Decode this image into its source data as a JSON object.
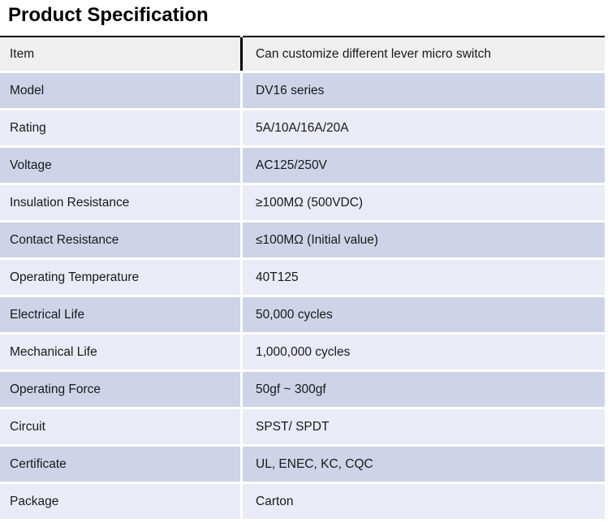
{
  "page": {
    "title": "Product Specification"
  },
  "colors": {
    "row_header_bg": "#efefef",
    "row_dark_bg": "#ced3e8",
    "row_light_bg": "#e9ebf6",
    "border": "#000000"
  },
  "table": {
    "rows": [
      {
        "label": "Item",
        "value": "Can customize different lever micro switch"
      },
      {
        "label": "Model",
        "value": "DV16 series"
      },
      {
        "label": "Rating",
        "value": "5A/10A/16A/20A"
      },
      {
        "label": "Voltage",
        "value": "AC125/250V"
      },
      {
        "label": "Insulation Resistance",
        "value": "≥100MΩ (500VDC)"
      },
      {
        "label": "Contact Resistance",
        "value": "≤100MΩ (Initial value)"
      },
      {
        "label": "Operating Temperature",
        "value": "40T125"
      },
      {
        "label": "Electrical Life",
        "value": "50,000 cycles"
      },
      {
        "label": "Mechanical Life",
        "value": "1,000,000 cycles"
      },
      {
        "label": "Operating Force",
        "value": "50gf ~  300gf"
      },
      {
        "label": "Circuit",
        "value": "SPST/ SPDT"
      },
      {
        "label": "Certificate",
        "value": "UL, ENEC, KC, CQC"
      },
      {
        "label": "Package",
        "value": "Carton"
      }
    ]
  }
}
